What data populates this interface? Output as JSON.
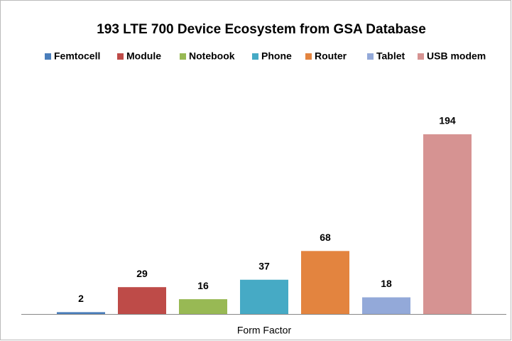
{
  "chart_data": {
    "type": "bar",
    "title": "193 LTE 700 Device Ecosystem from GSA Database",
    "categories": [
      "Form Factor"
    ],
    "series": [
      {
        "name": "Femtocell",
        "color": "#4a7ebb",
        "values": [
          2
        ]
      },
      {
        "name": "Module",
        "color": "#be4b48",
        "values": [
          29
        ]
      },
      {
        "name": "Notebook",
        "color": "#98b954",
        "values": [
          16
        ]
      },
      {
        "name": "Phone",
        "color": "#46aac5",
        "values": [
          37
        ]
      },
      {
        "name": "Router",
        "color": "#e3843f",
        "values": [
          68
        ]
      },
      {
        "name": "Tablet",
        "color": "#93a9d9",
        "values": [
          18
        ]
      },
      {
        "name": "USB modem",
        "color": "#d69392",
        "values": [
          194
        ]
      }
    ],
    "ylim": [
      0,
      250
    ],
    "legend": "top",
    "grid": false
  }
}
